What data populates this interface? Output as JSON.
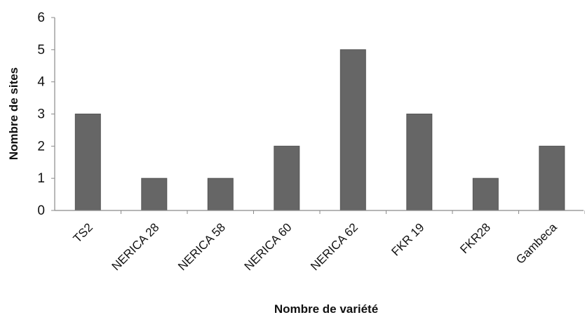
{
  "chart_data": {
    "type": "bar",
    "title": "",
    "xlabel": "Nombre de variété",
    "ylabel": "Nombre de sites",
    "categories": [
      "TS2",
      "NERICA 28",
      "NERICA 58",
      "NERICA 60",
      "NERICA 62",
      "FKR 19",
      "FKR28",
      "Gambeca"
    ],
    "values": [
      3,
      1,
      1,
      2,
      5,
      3,
      1,
      2
    ],
    "ylim": [
      0,
      6
    ],
    "yticks": [
      "0",
      "1",
      "2",
      "3",
      "4",
      "5",
      "6"
    ],
    "grid": false,
    "legend": "none",
    "colors": {
      "bar": "#666666",
      "axis": "#8a8a8a",
      "text": "#111111"
    }
  }
}
